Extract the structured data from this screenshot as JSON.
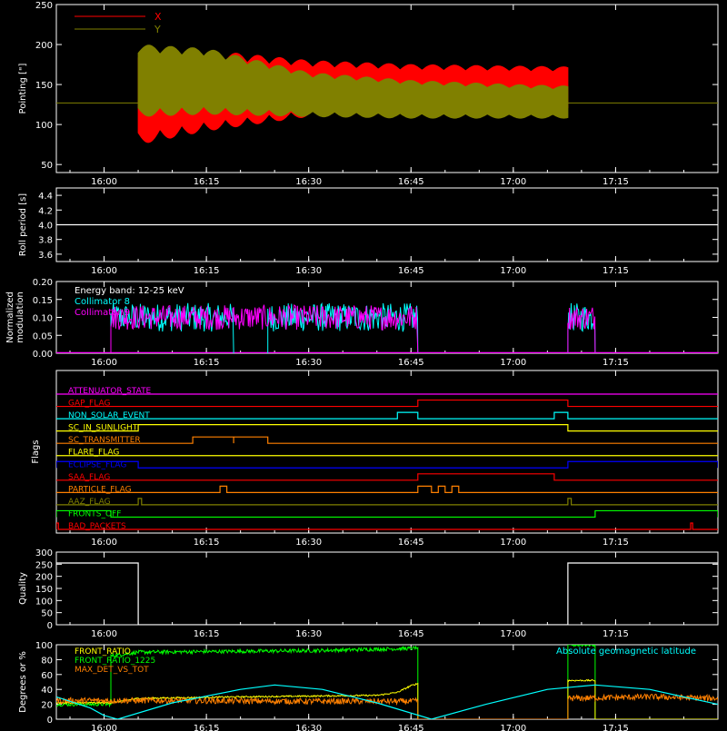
{
  "chart_data": [
    {
      "type": "line",
      "id": "pointing",
      "ylabel": "Pointing [\"]",
      "ylim": [
        40,
        250
      ],
      "yticks": [
        50,
        100,
        150,
        200,
        250
      ],
      "x_range": [
        "15:53",
        "17:30"
      ],
      "x_ticks": [
        "16:00",
        "16:15",
        "16:30",
        "16:45",
        "17:00",
        "17:15"
      ],
      "legend": [
        {
          "name": "X",
          "color": "#ff0000"
        },
        {
          "name": "Y",
          "color": "#808000"
        }
      ],
      "baseline": {
        "value": 127,
        "color": "#808000"
      },
      "data_window": [
        "16:05",
        "17:08"
      ],
      "series": [
        {
          "name": "X",
          "color": "#ff0000",
          "upper_envelope": [
            {
              "t": "16:05",
              "v": 198
            },
            {
              "t": "16:15",
              "v": 193
            },
            {
              "t": "16:30",
              "v": 180
            },
            {
              "t": "16:45",
              "v": 175
            },
            {
              "t": "17:00",
              "v": 173
            },
            {
              "t": "17:08",
              "v": 172
            }
          ],
          "lower_envelope": [
            {
              "t": "16:05",
              "v": 75
            },
            {
              "t": "16:15",
              "v": 92
            },
            {
              "t": "16:30",
              "v": 110
            },
            {
              "t": "16:45",
              "v": 116
            },
            {
              "t": "17:00",
              "v": 118
            },
            {
              "t": "17:08",
              "v": 120
            }
          ]
        },
        {
          "name": "Y",
          "color": "#808000",
          "upper_envelope": [
            {
              "t": "16:05",
              "v": 200
            },
            {
              "t": "16:15",
              "v": 195
            },
            {
              "t": "16:30",
              "v": 165
            },
            {
              "t": "16:45",
              "v": 155
            },
            {
              "t": "17:00",
              "v": 150
            },
            {
              "t": "17:08",
              "v": 148
            }
          ],
          "lower_envelope": [
            {
              "t": "16:05",
              "v": 110
            },
            {
              "t": "16:15",
              "v": 113
            },
            {
              "t": "16:30",
              "v": 110
            },
            {
              "t": "16:45",
              "v": 108
            },
            {
              "t": "17:00",
              "v": 108
            },
            {
              "t": "17:08",
              "v": 108
            }
          ]
        }
      ]
    },
    {
      "type": "line",
      "id": "roll",
      "ylabel": "Roll period [s]",
      "ylim": [
        3.5,
        4.5
      ],
      "yticks": [
        3.6,
        3.8,
        4.0,
        4.2,
        4.4
      ],
      "x_range": [
        "15:53",
        "17:30"
      ],
      "x_ticks": [
        "16:00",
        "16:15",
        "16:30",
        "16:45",
        "17:00",
        "17:15"
      ],
      "series": [
        {
          "name": "",
          "color": "#ffffff",
          "points": [
            {
              "t": "15:53",
              "v": 4.0
            },
            {
              "t": "17:30",
              "v": 4.0
            }
          ]
        }
      ]
    },
    {
      "type": "line",
      "id": "modulation",
      "ylabel": "Normalized modulation",
      "ylim": [
        0,
        0.2
      ],
      "yticks": [
        0.0,
        0.05,
        0.1,
        0.15,
        0.2
      ],
      "x_range": [
        "15:53",
        "17:30"
      ],
      "x_ticks": [
        "16:00",
        "16:15",
        "16:30",
        "16:45",
        "17:00",
        "17:15"
      ],
      "annotation": "Energy band: 12-25 keV",
      "legend": [
        {
          "name": "Collimator 8",
          "color": "#00ffff"
        },
        {
          "name": "Collimator 9",
          "color": "#ff00ff"
        }
      ],
      "series": [
        {
          "name": "Collimator 8",
          "color": "#00ffff",
          "segments": [
            [
              "16:01",
              "16:19"
            ],
            [
              "16:24",
              "16:46"
            ],
            [
              "17:08",
              "17:12"
            ]
          ],
          "mean": 0.1,
          "spread": 0.04
        },
        {
          "name": "Collimator 9",
          "color": "#ff00ff",
          "segments": [
            [
              "16:01",
              "16:46"
            ],
            [
              "17:08",
              "17:12"
            ]
          ],
          "mean": 0.1,
          "spread": 0.035
        }
      ]
    },
    {
      "type": "line",
      "id": "flags",
      "ylabel": "Flags",
      "x_range": [
        "15:53",
        "17:30"
      ],
      "x_ticks": [
        "16:00",
        "16:15",
        "16:30",
        "16:45",
        "17:00",
        "17:15"
      ],
      "flags": [
        {
          "name": "ATTENUATOR_STATE",
          "color": "#ff00ff",
          "on": []
        },
        {
          "name": "GAP_FLAG",
          "color": "#ff0000",
          "on": [
            [
              "16:46",
              "17:08"
            ]
          ]
        },
        {
          "name": "NON_SOLAR_EVENT",
          "color": "#00ffff",
          "on": [
            [
              "16:43",
              "16:46"
            ],
            [
              "17:06",
              "17:08"
            ]
          ]
        },
        {
          "name": "SC_IN_SUNLIGHT",
          "color": "#ffff00",
          "on": [
            [
              "16:05",
              "17:08"
            ]
          ]
        },
        {
          "name": "SC_TRANSMITTER",
          "color": "#ff8000",
          "on": [
            [
              "16:13",
              "16:19"
            ],
            [
              "16:19",
              "16:24"
            ]
          ]
        },
        {
          "name": "FLARE_FLAG",
          "color": "#ffff00",
          "on": []
        },
        {
          "name": "ECLIPSE_FLAG",
          "color": "#0000ff",
          "on": [
            [
              "15:53",
              "16:05"
            ],
            [
              "17:08",
              "17:30"
            ]
          ]
        },
        {
          "name": "SAA_FLAG",
          "color": "#ff0000",
          "on": [
            [
              "16:46",
              "17:06"
            ]
          ]
        },
        {
          "name": "PARTICLE_FLAG",
          "color": "#ff8000",
          "on": [
            [
              "16:17",
              "16:18"
            ],
            [
              "16:46",
              "16:48"
            ],
            [
              "16:49",
              "16:50"
            ],
            [
              "16:51",
              "16:52"
            ]
          ]
        },
        {
          "name": "AAZ_FLAG",
          "color": "#808000",
          "on": [
            [
              "16:05",
              "16:05.5"
            ],
            [
              "17:08",
              "17:08.5"
            ]
          ]
        },
        {
          "name": "FRONTS_OFF",
          "color": "#00ff00",
          "on": [
            [
              "15:53",
              "16:01"
            ],
            [
              "17:12",
              "17:30"
            ]
          ]
        },
        {
          "name": "BAD_PACKETS",
          "color": "#ff0000",
          "on": [
            [
              "15:53",
              "15:53.3"
            ],
            [
              "17:26",
              "17:26.3"
            ]
          ]
        }
      ]
    },
    {
      "type": "line",
      "id": "quality",
      "ylabel": "Quality",
      "ylim": [
        0,
        300
      ],
      "yticks": [
        0,
        50,
        100,
        150,
        200,
        250,
        300
      ],
      "x_range": [
        "15:53",
        "17:30"
      ],
      "x_ticks": [
        "16:00",
        "16:15",
        "16:30",
        "16:45",
        "17:00",
        "17:15"
      ],
      "series": [
        {
          "name": "",
          "color": "#ffffff",
          "points": [
            {
              "t": "15:53",
              "v": 255
            },
            {
              "t": "16:05",
              "v": 255
            },
            {
              "t": "16:05",
              "v": 0
            },
            {
              "t": "17:08",
              "v": 0
            },
            {
              "t": "17:08",
              "v": 255
            },
            {
              "t": "17:30",
              "v": 255
            }
          ]
        }
      ]
    },
    {
      "type": "line",
      "id": "ratios",
      "ylabel": "Degrees or %",
      "ylim": [
        0,
        100
      ],
      "yticks": [
        0,
        20,
        40,
        60,
        80,
        100
      ],
      "x_range": [
        "15:53",
        "17:30"
      ],
      "x_ticks": [
        "16:00",
        "16:15",
        "16:30",
        "16:45",
        "17:00",
        "17:15"
      ],
      "legend": [
        {
          "name": "FRONT_RATIO",
          "color": "#ffff00"
        },
        {
          "name": "FRONT_RATIO_1225",
          "color": "#00ff00"
        },
        {
          "name": "MAX_DET_VS_TOT",
          "color": "#ff8000"
        },
        {
          "name": "Absolute geomagnetic latitude",
          "color": "#00ffff"
        }
      ],
      "series": [
        {
          "name": "FRONT_RATIO_1225",
          "color": "#00ff00",
          "points": [
            {
              "t": "15:53",
              "v": 20
            },
            {
              "t": "16:01",
              "v": 20
            },
            {
              "t": "16:01",
              "v": 85
            },
            {
              "t": "16:05",
              "v": 90
            },
            {
              "t": "16:30",
              "v": 92
            },
            {
              "t": "16:45",
              "v": 95
            },
            {
              "t": "16:46",
              "v": 96
            },
            {
              "t": "16:46",
              "v": 0
            },
            {
              "t": "17:08",
              "v": 0
            },
            {
              "t": "17:08",
              "v": 100
            },
            {
              "t": "17:12",
              "v": 100
            },
            {
              "t": "17:12",
              "v": 0
            },
            {
              "t": "17:30",
              "v": 0
            }
          ]
        },
        {
          "name": "FRONT_RATIO",
          "color": "#ffff00",
          "points": [
            {
              "t": "15:53",
              "v": 22
            },
            {
              "t": "16:01",
              "v": 22
            },
            {
              "t": "16:05",
              "v": 28
            },
            {
              "t": "16:20",
              "v": 30
            },
            {
              "t": "16:40",
              "v": 32
            },
            {
              "t": "16:43",
              "v": 36
            },
            {
              "t": "16:45",
              "v": 45
            },
            {
              "t": "16:46",
              "v": 48
            },
            {
              "t": "16:46",
              "v": 0
            },
            {
              "t": "17:08",
              "v": 0
            },
            {
              "t": "17:08",
              "v": 52
            },
            {
              "t": "17:12",
              "v": 52
            },
            {
              "t": "17:12",
              "v": 0
            },
            {
              "t": "17:30",
              "v": 0
            }
          ]
        },
        {
          "name": "MAX_DET_VS_TOT",
          "color": "#ff8000",
          "points": [
            {
              "t": "15:53",
              "v": 25
            },
            {
              "t": "16:10",
              "v": 25
            },
            {
              "t": "16:30",
              "v": 24
            },
            {
              "t": "16:46",
              "v": 24
            },
            {
              "t": "16:46",
              "v": 0
            },
            {
              "t": "17:08",
              "v": 0
            },
            {
              "t": "17:08",
              "v": 28
            },
            {
              "t": "17:20",
              "v": 30
            },
            {
              "t": "17:30",
              "v": 28
            }
          ]
        },
        {
          "name": "Absolute geomagnetic latitude",
          "color": "#00ffff",
          "points": [
            {
              "t": "15:53",
              "v": 30
            },
            {
              "t": "15:58",
              "v": 15
            },
            {
              "t": "16:00",
              "v": 5
            },
            {
              "t": "16:02",
              "v": 0
            },
            {
              "t": "16:10",
              "v": 22
            },
            {
              "t": "16:20",
              "v": 40
            },
            {
              "t": "16:25",
              "v": 46
            },
            {
              "t": "16:32",
              "v": 40
            },
            {
              "t": "16:40",
              "v": 22
            },
            {
              "t": "16:48",
              "v": 0
            },
            {
              "t": "16:56",
              "v": 20
            },
            {
              "t": "17:05",
              "v": 40
            },
            {
              "t": "17:12",
              "v": 46
            },
            {
              "t": "17:20",
              "v": 40
            },
            {
              "t": "17:30",
              "v": 20
            }
          ]
        }
      ]
    }
  ]
}
